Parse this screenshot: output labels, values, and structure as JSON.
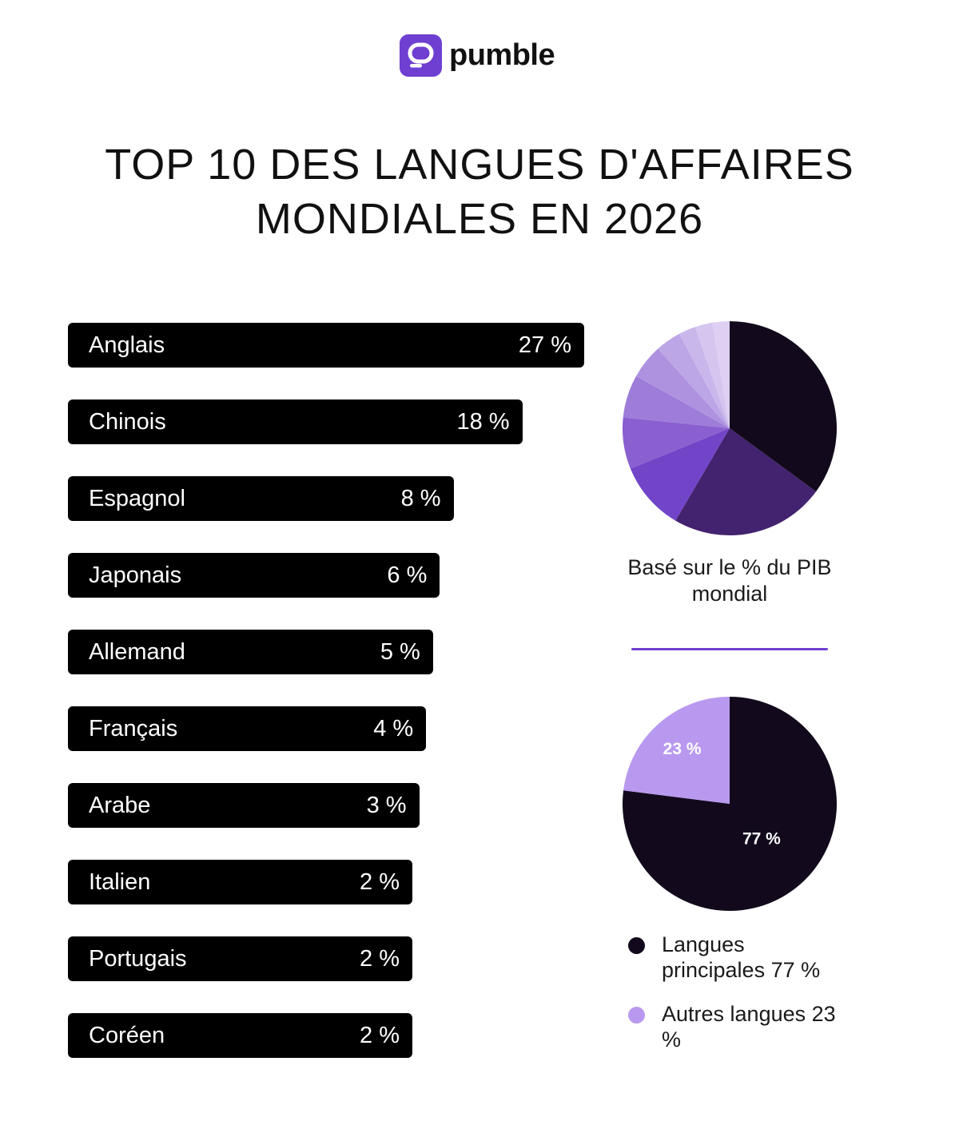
{
  "brand": {
    "name": "pumble",
    "color": "#6f3fd1"
  },
  "title_lines": [
    "TOP 10 DES LANGUES D'AFFAIRES",
    "MONDIALES EN 2026"
  ],
  "chart_data": [
    {
      "type": "bar",
      "orientation": "horizontal",
      "categories": [
        "Anglais",
        "Chinois",
        "Espagnol",
        "Japonais",
        "Allemand",
        "Français",
        "Arabe",
        "Italien",
        "Portugais",
        "Coréen"
      ],
      "values": [
        27,
        18,
        8,
        6,
        5,
        4,
        3,
        2,
        2,
        2
      ],
      "value_labels": [
        "27 %",
        "18 %",
        "8 %",
        "6 %",
        "5 %",
        "4 %",
        "3 %",
        "2 %",
        "2 %",
        "2 %"
      ],
      "unit": "%",
      "bar_color": "#000000"
    },
    {
      "type": "pie",
      "categories": [
        "Anglais",
        "Chinois",
        "Espagnol",
        "Japonais",
        "Allemand",
        "Français",
        "Arabe",
        "Italien",
        "Portugais",
        "Coréen"
      ],
      "values": [
        27,
        18,
        8,
        6,
        5,
        4,
        3,
        2,
        2,
        2
      ],
      "colors": [
        "#120a1c",
        "#43226f",
        "#7244c8",
        "#8a5fcf",
        "#9d7dd9",
        "#ae92e0",
        "#bca6e6",
        "#c9b7eb",
        "#d5c6f0",
        "#ddd0f3"
      ],
      "caption": "Basé sur le % du PIB mondial"
    },
    {
      "type": "pie",
      "categories": [
        "Langues principales 77 %",
        "Autres langues 23 %"
      ],
      "values": [
        77,
        23
      ],
      "slice_labels": [
        "77 %",
        "23 %"
      ],
      "colors": [
        "#120a1c",
        "#b899ef"
      ]
    }
  ]
}
